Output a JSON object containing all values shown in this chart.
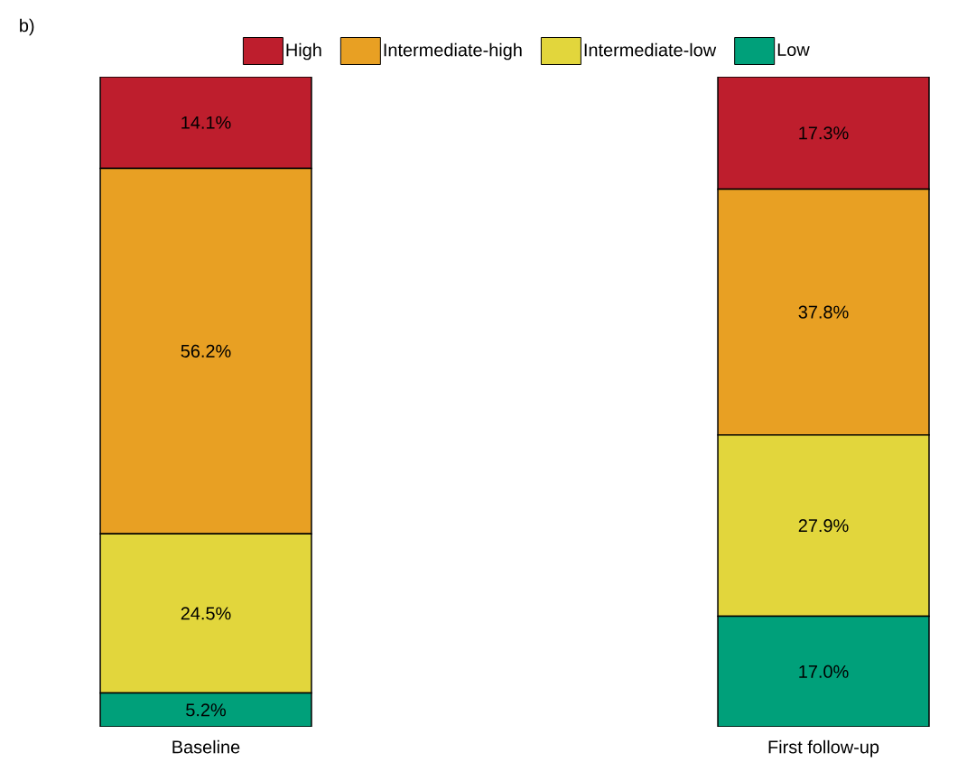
{
  "chart_data": {
    "type": "bar",
    "stacked": true,
    "categories": [
      "Baseline",
      "First follow-up"
    ],
    "series": [
      {
        "name": "Low",
        "color": "#00a07a",
        "values": [
          5.2,
          17.0
        ],
        "value_labels": [
          "5.2%",
          "17.0%"
        ]
      },
      {
        "name": "Intermediate-low",
        "color": "#e2d63c",
        "values": [
          24.5,
          27.9
        ],
        "value_labels": [
          "24.5%",
          "27.9%"
        ]
      },
      {
        "name": "Intermediate-high",
        "color": "#e8a023",
        "values": [
          56.2,
          37.8
        ],
        "value_labels": [
          "56.2%",
          "37.8%"
        ]
      },
      {
        "name": "High",
        "color": "#be1e2d",
        "values": [
          14.1,
          17.3
        ],
        "value_labels": [
          "14.1%",
          "17.3%"
        ]
      }
    ],
    "annotations": [
      "b)"
    ],
    "legend": "top",
    "tick_labels": "x"
  }
}
